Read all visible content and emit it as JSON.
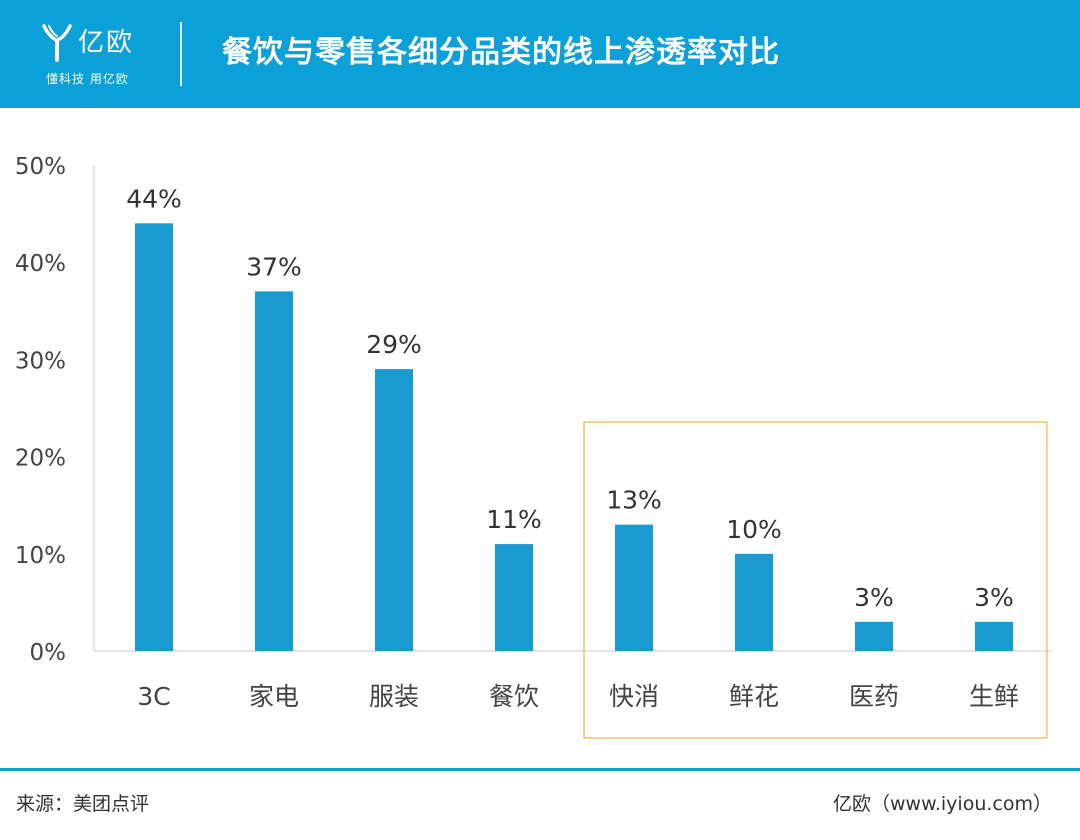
{
  "header": {
    "logo_name": "亿欧",
    "logo_slogan": "懂科技 用亿欧",
    "title": "餐饮与零售各细分品类的线上渗透率对比"
  },
  "colors": {
    "header_bg": "#0ca0d8",
    "bar": "#1a9bd0",
    "highlight_box": "#f0b24a",
    "axis": "#cccccc"
  },
  "chart_data": {
    "type": "bar",
    "title": "餐饮与零售各细分品类的线上渗透率对比",
    "xlabel": "",
    "ylabel": "",
    "categories": [
      "3C",
      "家电",
      "服装",
      "餐饮",
      "快消",
      "鲜花",
      "医药",
      "生鲜"
    ],
    "values": [
      44,
      37,
      29,
      11,
      13,
      10,
      3,
      3
    ],
    "value_labels": [
      "44%",
      "37%",
      "29%",
      "11%",
      "13%",
      "10%",
      "3%",
      "3%"
    ],
    "ylim": [
      0,
      50
    ],
    "yticks": [
      0,
      10,
      20,
      30,
      40,
      50
    ],
    "ytick_labels": [
      "0%",
      "10%",
      "20%",
      "30%",
      "40%",
      "50%"
    ],
    "grid": false,
    "highlight": {
      "categories": [
        "快消",
        "鲜花",
        "医药",
        "生鲜"
      ]
    }
  },
  "footer": {
    "source": "来源：美团点评",
    "brand": "亿欧（www.iyiou.com）"
  }
}
